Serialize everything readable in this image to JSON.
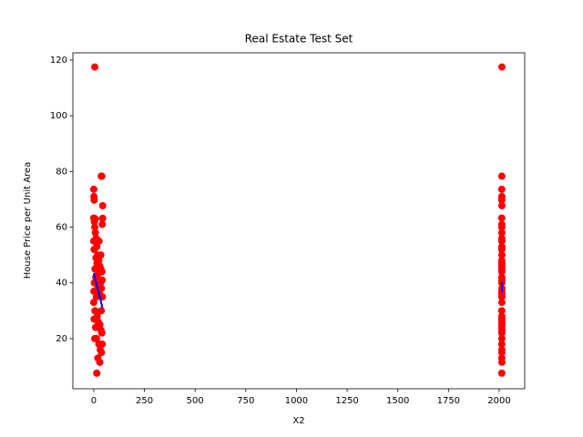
{
  "chart_data": {
    "type": "scatter",
    "title": "Real Estate Test Set",
    "x_label": "X2",
    "y_label": "House Price per Unit Area",
    "xlim": [
      -103,
      2126
    ],
    "ylim": [
      2.0,
      122.6
    ],
    "xticks": [
      0,
      250,
      500,
      750,
      1000,
      1250,
      1500,
      1750,
      2000
    ],
    "yticks": [
      20,
      40,
      60,
      80,
      100,
      120
    ],
    "points": {
      "color": "#ff0000",
      "x": [
        5,
        37,
        40,
        44,
        44,
        42,
        0,
        1,
        2,
        0,
        3,
        5,
        8,
        12,
        0,
        2,
        15,
        20,
        25,
        30,
        35,
        40,
        16,
        6,
        10,
        3,
        20,
        28,
        33,
        38,
        42,
        13,
        0,
        6,
        17,
        22,
        30,
        36,
        40,
        9,
        2,
        14,
        25,
        32,
        38,
        42,
        20,
        30,
        5,
        15,
        37,
        43,
        11,
        26,
        35,
        1,
        19,
        8,
        2013.5,
        2013.2,
        2012.9,
        2013.4,
        2013.0,
        2013.6,
        2012.8,
        2013.3,
        2013.1,
        2013.5,
        2012.9,
        2013.2,
        2013.4,
        2013.0,
        2013.6,
        2012.8,
        2013.3,
        2013.1,
        2013.5,
        2012.9,
        2013.2,
        2013.4,
        2013.0,
        2013.6,
        2012.8,
        2013.3,
        2013.1,
        2013.5,
        2012.9,
        2013.2,
        2013.4,
        2013.0,
        2013.6,
        2012.8,
        2013.3,
        2013.1,
        2013.5,
        2012.9,
        2013.2,
        2013.4,
        2013.0,
        2013.6,
        2012.8
      ],
      "y": [
        117.5,
        78.3,
        78.3,
        67.7,
        63.2,
        61,
        73.6,
        71,
        69.7,
        63.3,
        62,
        60,
        58,
        56,
        55,
        52,
        53,
        50,
        48,
        46,
        45,
        44,
        47,
        45,
        42,
        40,
        38,
        36,
        40,
        38,
        41,
        35,
        33,
        30,
        28,
        26,
        25,
        23,
        22,
        24,
        27,
        20,
        18,
        16,
        15,
        18,
        13,
        11.5,
        20,
        7.6,
        30,
        35,
        49,
        55,
        50,
        37,
        43,
        63,
        117.5,
        78.3,
        73.6,
        71,
        69.7,
        67.7,
        63.3,
        61,
        60,
        58,
        56,
        55,
        53,
        52,
        50,
        48,
        47,
        46,
        45,
        44,
        42,
        41,
        40,
        38,
        37,
        36,
        35,
        33,
        30,
        28,
        27,
        26,
        25,
        24,
        23,
        22,
        20,
        18,
        16,
        15,
        13,
        11.5,
        7.6
      ]
    },
    "lines": [
      {
        "color": "#0000ff",
        "x": [
          0,
          43
        ],
        "y": [
          43.5,
          31.1
        ]
      },
      {
        "color": "#0000ff",
        "x": [
          2012.9,
          2013.6
        ],
        "y": [
          40.3,
          36.6
        ]
      }
    ]
  }
}
